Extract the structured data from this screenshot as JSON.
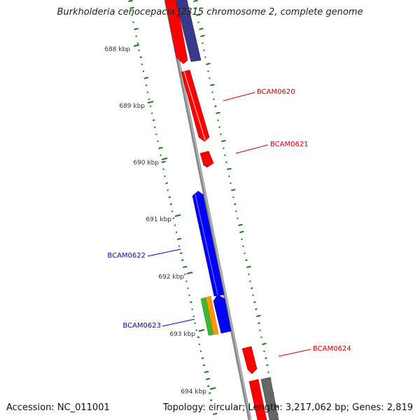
{
  "title": "Burkholderia cenocepacia J2315 chromosome 2, complete genome",
  "accession_text": "Accession: NC_011001",
  "summary_text": "Topology: circular; Length: 3,217,062 bp; Genes: 2,819",
  "scale_labels": [
    "688 kbp",
    "689 kbp",
    "690 kbp",
    "691 kbp",
    "692 kbp",
    "693 kbp",
    "694 kbp"
  ],
  "gene_labels": [
    {
      "text": "BCAM0620",
      "color": "#cc0000"
    },
    {
      "text": "BCAM0621",
      "color": "#cc0000"
    },
    {
      "text": "BCAM0622",
      "color": "#0000cc"
    },
    {
      "text": "BCAM0623",
      "color": "#0000cc"
    },
    {
      "text": "BCAM0624",
      "color": "#cc0000"
    }
  ],
  "colors": {
    "forward_gene": "#ff0000",
    "reverse_gene": "#0000ff",
    "reverse_gene_dark": "#3a3a8c",
    "orf_green": "#3cb832",
    "orf_orange": "#ff9900",
    "other_gray": "#666666",
    "backbone": "#888888",
    "gc_ticks": "#1a7a1a"
  }
}
